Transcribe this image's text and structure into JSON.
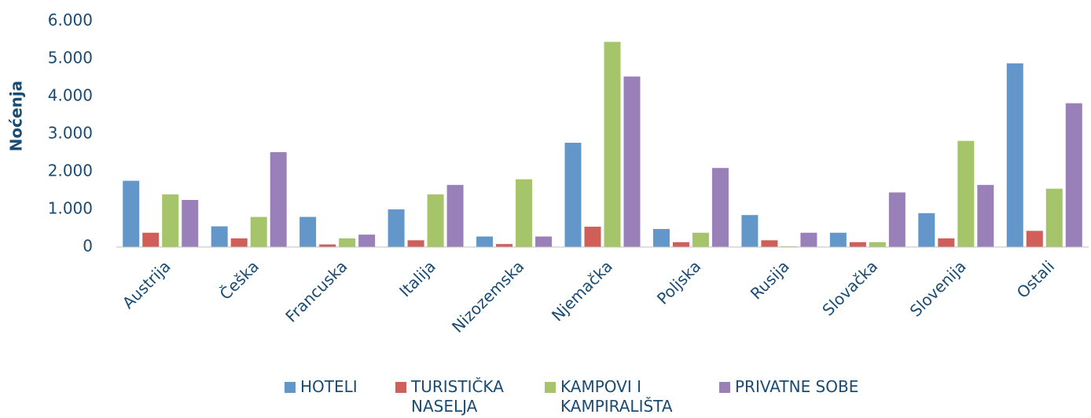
{
  "chart_data": {
    "type": "bar",
    "ylabel": "Noćenja",
    "categories": [
      "Austrija",
      "Češka",
      "Francuska",
      "Italija",
      "Nizozemska",
      "Njemačka",
      "Poljska",
      "Rusija",
      "Slovačka",
      "Slovenija",
      "Ostali"
    ],
    "series": [
      {
        "name": "HOTELI",
        "color": "#6497c9",
        "values": [
          1760,
          550,
          800,
          1000,
          280,
          2770,
          480,
          850,
          380,
          900,
          4880
        ]
      },
      {
        "name": "TURISTIČKA NASELJA",
        "color": "#cf5f58",
        "values": [
          380,
          230,
          70,
          180,
          80,
          540,
          130,
          180,
          130,
          230,
          430
        ]
      },
      {
        "name": "KAMPOVI I KAMPIRALIŠTA",
        "color": "#a6c46a",
        "values": [
          1400,
          800,
          230,
          1400,
          1800,
          5450,
          380,
          20,
          130,
          2820,
          1550
        ]
      },
      {
        "name": "PRIVATNE SOBE",
        "color": "#9a80b8",
        "values": [
          1250,
          2520,
          330,
          1650,
          280,
          4530,
          2100,
          380,
          1450,
          1650,
          3820
        ]
      }
    ],
    "ylim": [
      0,
      6000
    ],
    "yticks": [
      0,
      {
        "value": 1000,
        "label": "1.000"
      },
      {
        "value": 2000,
        "label": "2.000"
      },
      {
        "value": 3000,
        "label": "3.000"
      },
      {
        "value": 4000,
        "label": "4.000"
      },
      {
        "value": 5000,
        "label": "5.000"
      },
      {
        "value": 6000,
        "label": "6.000"
      }
    ],
    "grid": false,
    "legend": "bottom"
  }
}
